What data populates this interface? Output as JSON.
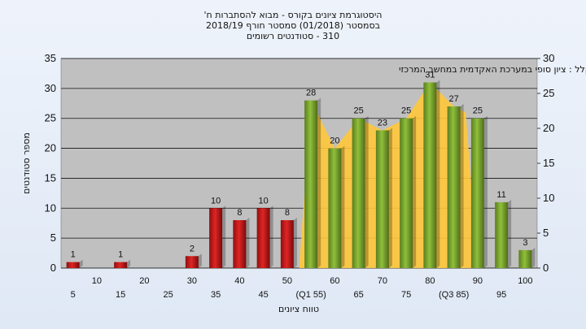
{
  "chart_data": {
    "type": "bar",
    "title_lines": [
      "היסטוגרמת ציונים בקורס - מבוא להסתברות ח'",
      "בסמסטר  (01/2018)  סמסטר חורף  2018/19",
      "310 - סטודנטים רשומים"
    ],
    "annotation": "במשוקלל : ציון סופי במערכת האקדמית במחשב המרכזי",
    "xlabel": "טווח ציונים",
    "ylabel": "מספר סטודנטים",
    "ylim": [
      0,
      35
    ],
    "yticks": [
      0,
      5,
      10,
      15,
      20,
      25,
      30,
      35
    ],
    "y2lim": [
      0,
      30
    ],
    "y2ticks": [
      0,
      5,
      10,
      15,
      20,
      25,
      30
    ],
    "categories": [
      "5",
      "10",
      "15",
      "20",
      "25",
      "30",
      "35",
      "40",
      "45",
      "50",
      "(Q1 55)",
      "60",
      "65",
      "70",
      "75",
      "80",
      "(Q3 85)",
      "90",
      "95",
      "100"
    ],
    "values": [
      1,
      0,
      1,
      0,
      0,
      2,
      10,
      8,
      10,
      8,
      28,
      20,
      25,
      23,
      25,
      31,
      27,
      25,
      11,
      3
    ],
    "value_labels": [
      "1",
      "",
      "1",
      "",
      "",
      "2",
      "10",
      "8",
      "10",
      "8",
      "28",
      "20",
      "25",
      "23",
      "25",
      "31",
      "27",
      "25",
      "11",
      "3"
    ],
    "bar_colors": [
      "red",
      "red",
      "red",
      "red",
      "red",
      "red",
      "red",
      "red",
      "red",
      "red",
      "green",
      "green",
      "green",
      "green",
      "green",
      "green",
      "green",
      "green",
      "green",
      "green"
    ],
    "area_range": [
      "(Q1 55)",
      "(Q3 85)"
    ],
    "colors": {
      "red_bar": "#e02525",
      "green_bar": "#8fc03a",
      "area_fill": "#ffc83a",
      "plot_bg": "#c0c0c0",
      "gridline": "#111111"
    },
    "grid": true
  }
}
